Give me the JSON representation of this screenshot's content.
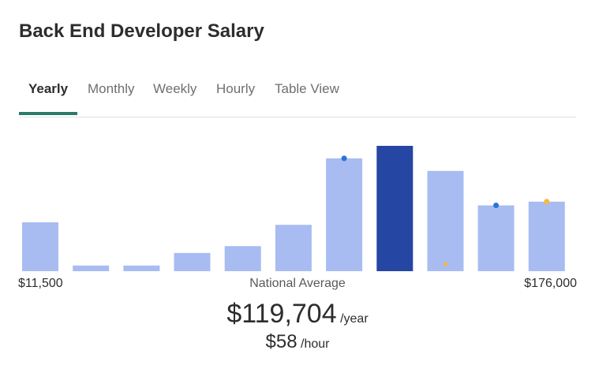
{
  "header": {
    "title": "Back End Developer Salary"
  },
  "tabs": [
    {
      "label": "Yearly",
      "active": true
    },
    {
      "label": "Monthly",
      "active": false
    },
    {
      "label": "Weekly",
      "active": false
    },
    {
      "label": "Hourly",
      "active": false
    },
    {
      "label": "Table View",
      "active": false
    }
  ],
  "chart_data": {
    "type": "bar",
    "bins": 11,
    "relative_heights": [
      0.39,
      0.045,
      0.045,
      0.145,
      0.2,
      0.37,
      0.9,
      1.0,
      0.8,
      0.525,
      0.555
    ],
    "highlight_index": 7,
    "colors": {
      "bar": "#a8bcf2",
      "highlight": "#2546a3",
      "marker_blue": "#2a73d6",
      "marker_orange": "#f5b93c"
    },
    "markers": [
      {
        "bin": 6,
        "level": 0.9,
        "color": "blue"
      },
      {
        "bin": 9,
        "level": 0.525,
        "color": "blue"
      },
      {
        "bin": 10,
        "level": 0.555,
        "color": "orange"
      },
      {
        "bin": 8,
        "level": 0.055,
        "color": "orange"
      }
    ],
    "x_min_label": "$11,500",
    "x_center_label": "National Average",
    "x_max_label": "$176,000"
  },
  "salary": {
    "annual_amount": "$119,704",
    "annual_unit": "/year",
    "hourly_amount": "$58",
    "hourly_unit": "/hour"
  }
}
